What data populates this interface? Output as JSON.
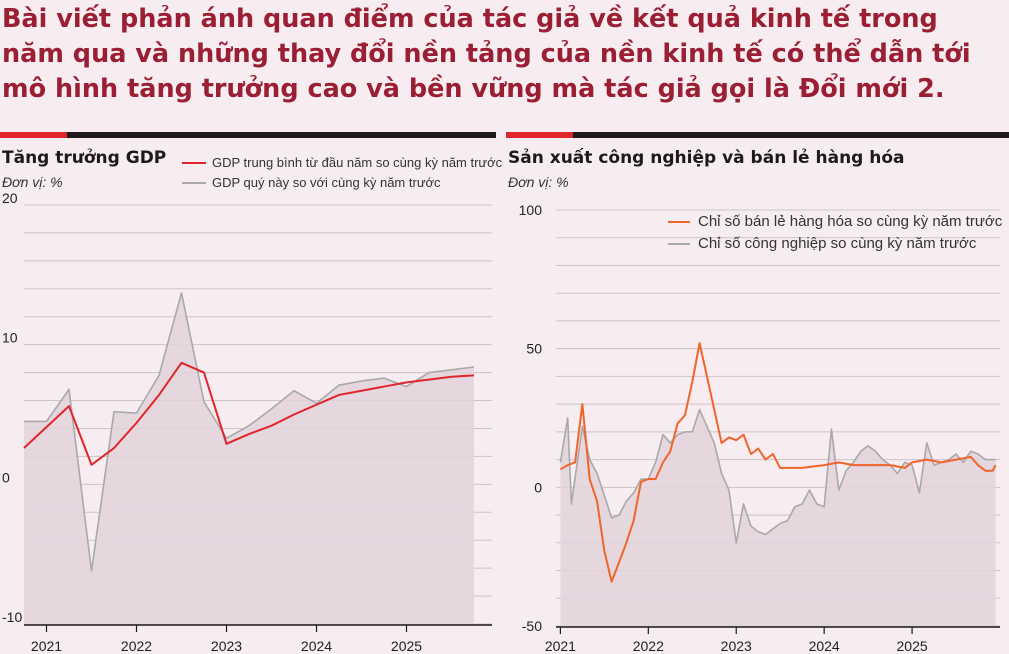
{
  "headline": "Bài viết phản ánh quan điểm của tác giả về kết quả kinh tế trong năm qua và những thay đổi nền tảng của nền kinh tế có thể dẫn tới mô hình tăng trưởng cao và bền vững mà tác giả gọi là Đổi mới 2.",
  "colors": {
    "red": "#e0262d",
    "gray": "#a9a9a9",
    "orange": "#f0652a",
    "fill": "#e3d3dc",
    "dark": "#1e1a1b",
    "headline": "#9b1f34"
  },
  "chart_data": [
    {
      "type": "line",
      "title": "Tăng trưởng GDP",
      "unit": "Đơn vị: %",
      "xlabel": "",
      "ylabel": "",
      "ylim": [
        -10,
        20
      ],
      "yticks": [
        20,
        10,
        0,
        -10
      ],
      "xlim": [
        2020.75,
        2025.95
      ],
      "xticks": [
        "2021",
        "2022",
        "2023",
        "2024",
        "2025"
      ],
      "grid": true,
      "legend_position": "top",
      "series": [
        {
          "name": "GDP trung bình từ đầu năm so cùng kỳ năm trước",
          "color": "#e0262d",
          "points": [
            [
              2020.75,
              2.6
            ],
            [
              2021.25,
              5.6
            ],
            [
              2021.5,
              1.4
            ],
            [
              2021.75,
              2.6
            ],
            [
              2022,
              4.4
            ],
            [
              2022.25,
              6.4
            ],
            [
              2022.5,
              8.7
            ],
            [
              2022.75,
              8.0
            ],
            [
              2023,
              2.9
            ],
            [
              2023.25,
              3.6
            ],
            [
              2023.5,
              4.2
            ],
            [
              2023.75,
              5.0
            ],
            [
              2024,
              5.7
            ],
            [
              2024.25,
              6.4
            ],
            [
              2024.5,
              6.7
            ],
            [
              2024.75,
              7.0
            ],
            [
              2025,
              7.3
            ],
            [
              2025.25,
              7.5
            ],
            [
              2025.5,
              7.7
            ],
            [
              2025.75,
              7.8
            ]
          ]
        },
        {
          "name": "GDP quý này so với cùng kỳ năm trước",
          "color": "#a9a9a9",
          "points": [
            [
              2020.75,
              4.5
            ],
            [
              2021,
              4.5
            ],
            [
              2021.25,
              6.8
            ],
            [
              2021.5,
              -6.2
            ],
            [
              2021.75,
              5.2
            ],
            [
              2022,
              5.1
            ],
            [
              2022.25,
              7.8
            ],
            [
              2022.5,
              13.7
            ],
            [
              2022.75,
              5.9
            ],
            [
              2023,
              3.3
            ],
            [
              2023.25,
              4.2
            ],
            [
              2023.5,
              5.4
            ],
            [
              2023.75,
              6.7
            ],
            [
              2024,
              5.8
            ],
            [
              2024.25,
              7.1
            ],
            [
              2024.5,
              7.4
            ],
            [
              2024.75,
              7.6
            ],
            [
              2025,
              7.0
            ],
            [
              2025.25,
              8.0
            ],
            [
              2025.5,
              8.2
            ],
            [
              2025.75,
              8.4
            ]
          ]
        }
      ]
    },
    {
      "type": "line",
      "title": "Sản xuất công nghiệp và bán lẻ hàng hóa",
      "unit": "Đơn vị: %",
      "xlabel": "",
      "ylabel": "",
      "ylim": [
        -50,
        100
      ],
      "yticks": [
        100,
        50,
        0,
        -50
      ],
      "xlim": [
        2020.95,
        2026.0
      ],
      "xticks": [
        "2021",
        "2022",
        "2023",
        "2024",
        "2025"
      ],
      "grid": true,
      "legend_position": "top-right",
      "series": [
        {
          "name": "Chỉ số bán lẻ hàng hóa so cùng kỳ năm trước",
          "color": "#f0652a",
          "points": [
            [
              2021,
              6.5
            ],
            [
              2021.083,
              8
            ],
            [
              2021.167,
              9
            ],
            [
              2021.25,
              30
            ],
            [
              2021.333,
              3
            ],
            [
              2021.417,
              -5
            ],
            [
              2021.5,
              -23
            ],
            [
              2021.583,
              -34
            ],
            [
              2021.667,
              -27
            ],
            [
              2021.75,
              -20
            ],
            [
              2021.833,
              -12
            ],
            [
              2021.917,
              2
            ],
            [
              2022,
              3
            ],
            [
              2022.083,
              3
            ],
            [
              2022.167,
              9
            ],
            [
              2022.25,
              13
            ],
            [
              2022.333,
              23
            ],
            [
              2022.417,
              26
            ],
            [
              2022.5,
              38
            ],
            [
              2022.583,
              52
            ],
            [
              2022.667,
              40
            ],
            [
              2022.75,
              28
            ],
            [
              2022.833,
              16
            ],
            [
              2022.917,
              18
            ],
            [
              2023,
              17
            ],
            [
              2023.083,
              19
            ],
            [
              2023.167,
              12
            ],
            [
              2023.25,
              14
            ],
            [
              2023.333,
              10
            ],
            [
              2023.417,
              12
            ],
            [
              2023.5,
              7
            ],
            [
              2023.75,
              7
            ],
            [
              2024,
              8
            ],
            [
              2024.167,
              9
            ],
            [
              2024.333,
              8
            ],
            [
              2024.5,
              8
            ],
            [
              2024.75,
              8
            ],
            [
              2024.917,
              7
            ],
            [
              2025,
              9
            ],
            [
              2025.167,
              10
            ],
            [
              2025.333,
              9
            ],
            [
              2025.5,
              10
            ],
            [
              2025.667,
              11
            ],
            [
              2025.75,
              8
            ],
            [
              2025.833,
              6
            ],
            [
              2025.917,
              6
            ],
            [
              2025.95,
              8
            ]
          ]
        },
        {
          "name": "Chỉ số công nghiệp so cùng kỳ năm trước",
          "color": "#a9a9a9",
          "points": [
            [
              2021,
              9
            ],
            [
              2021.083,
              25
            ],
            [
              2021.125,
              -6
            ],
            [
              2021.25,
              22
            ],
            [
              2021.333,
              10
            ],
            [
              2021.417,
              5
            ],
            [
              2021.5,
              -3
            ],
            [
              2021.583,
              -11
            ],
            [
              2021.667,
              -10
            ],
            [
              2021.75,
              -5
            ],
            [
              2021.833,
              -2
            ],
            [
              2021.917,
              3
            ],
            [
              2022,
              3
            ],
            [
              2022.083,
              9
            ],
            [
              2022.167,
              19
            ],
            [
              2022.25,
              16
            ],
            [
              2022.333,
              19
            ],
            [
              2022.417,
              20
            ],
            [
              2022.5,
              20
            ],
            [
              2022.583,
              28
            ],
            [
              2022.667,
              22
            ],
            [
              2022.75,
              16
            ],
            [
              2022.833,
              5
            ],
            [
              2022.917,
              -1
            ],
            [
              2023,
              -20
            ],
            [
              2023.083,
              -6
            ],
            [
              2023.167,
              -14
            ],
            [
              2023.25,
              -16
            ],
            [
              2023.333,
              -17
            ],
            [
              2023.417,
              -15
            ],
            [
              2023.5,
              -13
            ],
            [
              2023.583,
              -12
            ],
            [
              2023.667,
              -7
            ],
            [
              2023.75,
              -6
            ],
            [
              2023.833,
              -1
            ],
            [
              2023.917,
              -6
            ],
            [
              2024,
              -7
            ],
            [
              2024.083,
              21
            ],
            [
              2024.167,
              -1
            ],
            [
              2024.25,
              6
            ],
            [
              2024.333,
              9
            ],
            [
              2024.417,
              13
            ],
            [
              2024.5,
              15
            ],
            [
              2024.583,
              13
            ],
            [
              2024.667,
              10
            ],
            [
              2024.75,
              8
            ],
            [
              2024.833,
              5
            ],
            [
              2024.917,
              9
            ],
            [
              2025,
              8
            ],
            [
              2025.083,
              -2
            ],
            [
              2025.167,
              16
            ],
            [
              2025.25,
              8
            ],
            [
              2025.333,
              9
            ],
            [
              2025.417,
              10
            ],
            [
              2025.5,
              12
            ],
            [
              2025.583,
              9
            ],
            [
              2025.667,
              13
            ],
            [
              2025.75,
              12
            ],
            [
              2025.833,
              10
            ],
            [
              2025.95,
              10
            ]
          ]
        }
      ]
    }
  ]
}
